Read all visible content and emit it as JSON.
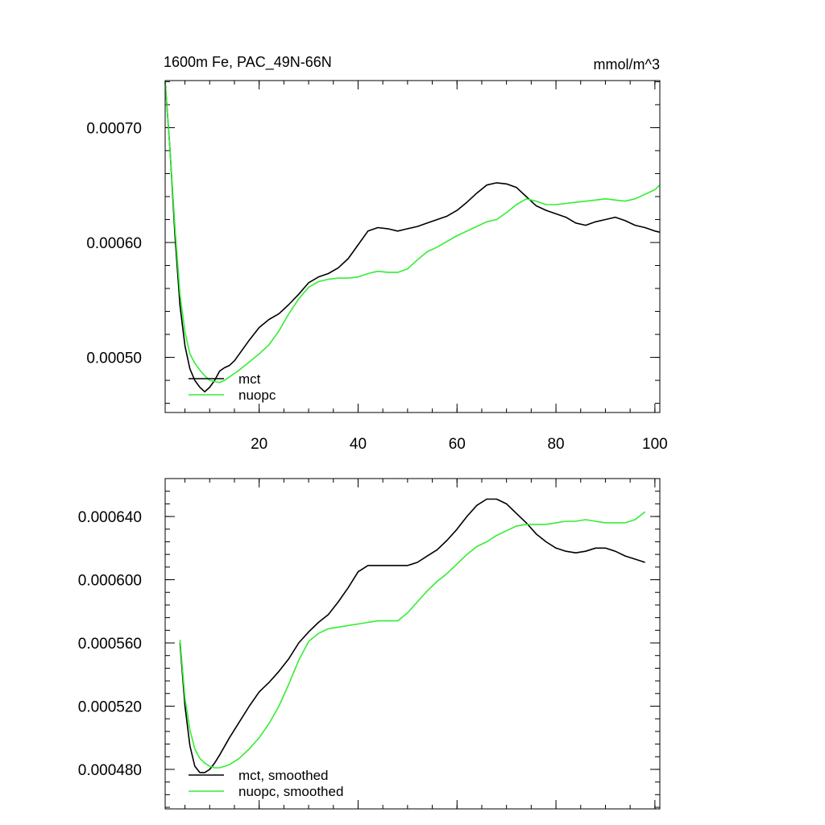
{
  "chart_data": [
    {
      "type": "line",
      "title": "1600m Fe, PAC_49N-66N",
      "units": "mmol/m^3",
      "xlim": [
        1,
        101
      ],
      "ylim": [
        0.000452,
        0.000741
      ],
      "x_ticks": [
        {
          "value": 20,
          "label": "20"
        },
        {
          "value": 40,
          "label": "40"
        },
        {
          "value": 60,
          "label": "60"
        },
        {
          "value": 80,
          "label": "80"
        },
        {
          "value": 100,
          "label": "100"
        }
      ],
      "y_ticks": [
        {
          "value": 0.0005,
          "label": "0.00050"
        },
        {
          "value": 0.0006,
          "label": "0.00060"
        },
        {
          "value": 0.0007,
          "label": "0.00070"
        }
      ],
      "legend_position": "bottom-left",
      "series": [
        {
          "name": "mct",
          "color": "#000000",
          "x": [
            1,
            2,
            3,
            4,
            5,
            6,
            7,
            8,
            9,
            10,
            11,
            12,
            13,
            14,
            15,
            16,
            18,
            20,
            22,
            24,
            26,
            28,
            30,
            32,
            34,
            36,
            38,
            40,
            42,
            44,
            46,
            48,
            50,
            52,
            54,
            56,
            58,
            60,
            62,
            64,
            66,
            68,
            70,
            72,
            74,
            76,
            78,
            80,
            82,
            84,
            86,
            88,
            90,
            92,
            94,
            96,
            98,
            100,
            101
          ],
          "values": [
            0.00074,
            0.00068,
            0.000605,
            0.000545,
            0.00051,
            0.00049,
            0.00048,
            0.000474,
            0.00047,
            0.000474,
            0.00048,
            0.000488,
            0.000491,
            0.000493,
            0.000497,
            0.000503,
            0.000515,
            0.000526,
            0.000533,
            0.000538,
            0.000546,
            0.000555,
            0.000565,
            0.00057,
            0.000573,
            0.000578,
            0.000586,
            0.000598,
            0.00061,
            0.000613,
            0.000612,
            0.00061,
            0.000612,
            0.000614,
            0.000617,
            0.00062,
            0.000623,
            0.000628,
            0.000635,
            0.000643,
            0.00065,
            0.000652,
            0.000651,
            0.000648,
            0.00064,
            0.000632,
            0.000628,
            0.000625,
            0.000622,
            0.000617,
            0.000615,
            0.000618,
            0.00062,
            0.000622,
            0.000619,
            0.000615,
            0.000613,
            0.00061,
            0.000609
          ]
        },
        {
          "name": "nuopc",
          "color": "#33ee33",
          "x": [
            1,
            2,
            3,
            4,
            5,
            6,
            7,
            8,
            9,
            10,
            11,
            12,
            13,
            14,
            15,
            16,
            18,
            20,
            22,
            24,
            26,
            28,
            30,
            32,
            34,
            36,
            38,
            40,
            42,
            44,
            46,
            48,
            50,
            52,
            54,
            56,
            58,
            60,
            62,
            64,
            66,
            68,
            70,
            72,
            74,
            76,
            78,
            80,
            82,
            84,
            86,
            88,
            90,
            92,
            94,
            96,
            98,
            100,
            101
          ],
          "values": [
            0.00074,
            0.00068,
            0.000612,
            0.000555,
            0.000522,
            0.000503,
            0.000495,
            0.000489,
            0.000484,
            0.00048,
            0.000479,
            0.000478,
            0.00048,
            0.000483,
            0.000486,
            0.000489,
            0.000496,
            0.000503,
            0.000511,
            0.000523,
            0.000538,
            0.000551,
            0.000561,
            0.000566,
            0.000568,
            0.000569,
            0.000569,
            0.00057,
            0.000573,
            0.000575,
            0.000574,
            0.000574,
            0.000577,
            0.000585,
            0.000592,
            0.000596,
            0.000601,
            0.000606,
            0.00061,
            0.000614,
            0.000618,
            0.00062,
            0.000626,
            0.000633,
            0.000638,
            0.000636,
            0.000633,
            0.000633,
            0.000634,
            0.000635,
            0.000636,
            0.000637,
            0.000638,
            0.000637,
            0.000636,
            0.000638,
            0.000642,
            0.000646,
            0.00065
          ]
        }
      ]
    },
    {
      "type": "line",
      "title": "",
      "xlim": [
        1,
        101
      ],
      "ylim": [
        0.000455,
        0.000664
      ],
      "x_ticks": [
        {
          "value": 20,
          "label": ""
        },
        {
          "value": 40,
          "label": ""
        },
        {
          "value": 60,
          "label": ""
        },
        {
          "value": 80,
          "label": ""
        },
        {
          "value": 100,
          "label": ""
        }
      ],
      "y_ticks": [
        {
          "value": 0.00048,
          "label": "0.000480"
        },
        {
          "value": 0.00052,
          "label": "0.000520"
        },
        {
          "value": 0.00056,
          "label": "0.000560"
        },
        {
          "value": 0.0006,
          "label": "0.000600"
        },
        {
          "value": 0.00064,
          "label": "0.000640"
        }
      ],
      "legend_position": "bottom-left",
      "series": [
        {
          "name": "mct, smoothed",
          "color": "#000000",
          "x": [
            4,
            5,
            6,
            7,
            8,
            9,
            10,
            11,
            12,
            14,
            16,
            18,
            20,
            22,
            24,
            26,
            28,
            30,
            32,
            34,
            36,
            38,
            40,
            42,
            44,
            46,
            48,
            50,
            52,
            54,
            56,
            58,
            60,
            62,
            64,
            66,
            68,
            70,
            72,
            74,
            76,
            78,
            80,
            82,
            84,
            86,
            88,
            90,
            92,
            94,
            96,
            98
          ],
          "values": [
            0.00056,
            0.00052,
            0.000495,
            0.000482,
            0.000478,
            0.000478,
            0.00048,
            0.000484,
            0.000489,
            0.0005,
            0.00051,
            0.00052,
            0.000529,
            0.000535,
            0.000542,
            0.00055,
            0.00056,
            0.000567,
            0.000573,
            0.000578,
            0.000586,
            0.000595,
            0.000605,
            0.000609,
            0.000609,
            0.000609,
            0.000609,
            0.000609,
            0.000611,
            0.000615,
            0.000619,
            0.000625,
            0.000632,
            0.00064,
            0.000647,
            0.000651,
            0.000651,
            0.000648,
            0.000642,
            0.000636,
            0.000629,
            0.000624,
            0.00062,
            0.000618,
            0.000617,
            0.000618,
            0.00062,
            0.00062,
            0.000618,
            0.000615,
            0.000613,
            0.000611
          ]
        },
        {
          "name": "nuopc, smoothed",
          "color": "#33ee33",
          "x": [
            4,
            5,
            6,
            7,
            8,
            9,
            10,
            11,
            12,
            14,
            16,
            18,
            20,
            22,
            24,
            26,
            28,
            30,
            32,
            34,
            36,
            38,
            40,
            42,
            44,
            46,
            48,
            50,
            52,
            54,
            56,
            58,
            60,
            62,
            64,
            66,
            68,
            70,
            72,
            74,
            76,
            78,
            80,
            82,
            84,
            86,
            88,
            90,
            92,
            94,
            96,
            98
          ],
          "values": [
            0.000562,
            0.000525,
            0.000505,
            0.000493,
            0.000487,
            0.000484,
            0.000482,
            0.000481,
            0.000481,
            0.000483,
            0.000487,
            0.000493,
            0.0005,
            0.000509,
            0.00052,
            0.000534,
            0.000549,
            0.000561,
            0.000566,
            0.000569,
            0.00057,
            0.000571,
            0.000572,
            0.000573,
            0.000574,
            0.000574,
            0.000574,
            0.000579,
            0.000586,
            0.000593,
            0.000599,
            0.000604,
            0.00061,
            0.000616,
            0.000621,
            0.000624,
            0.000628,
            0.000631,
            0.000634,
            0.000635,
            0.000635,
            0.000635,
            0.000636,
            0.000637,
            0.000637,
            0.000638,
            0.000637,
            0.000636,
            0.000636,
            0.000636,
            0.000638,
            0.000643
          ]
        }
      ]
    }
  ]
}
